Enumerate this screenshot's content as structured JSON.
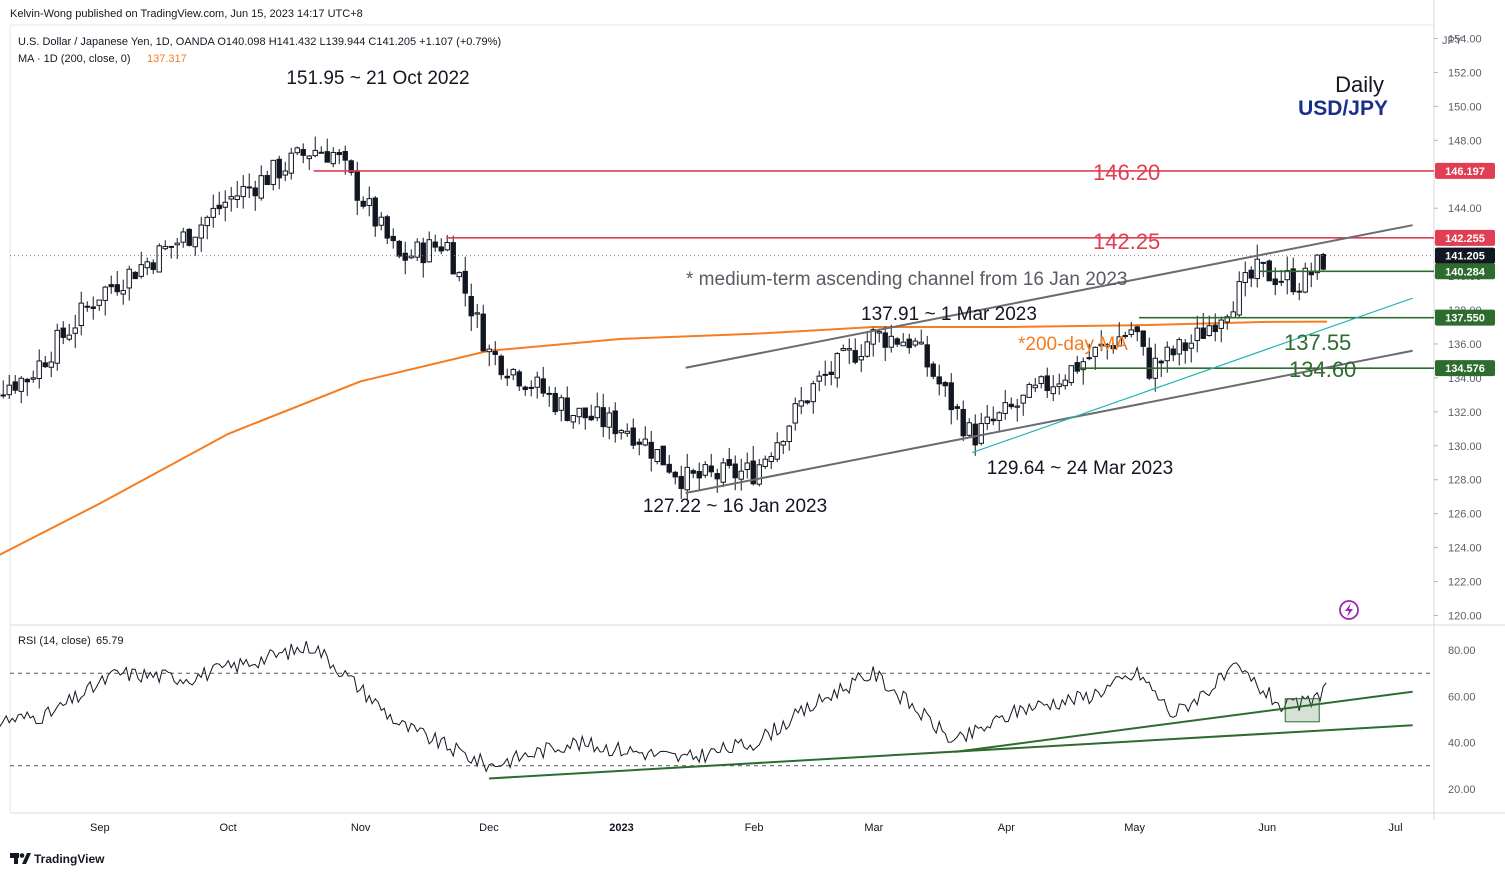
{
  "header": {
    "publisher": "Kelvin-Wong published on TradingView.com, Jun 15, 2023 14:17 UTC+8",
    "symbol_line": "U.S. Dollar / Japanese Yen, 1D, OANDA  O140.098  H141.432  L139.944  C141.205  +1.107 (+0.79%)",
    "ma_label": "MA · 1D (200, close, 0)",
    "ma_value": "137.317",
    "rsi_label": "RSI (14, close)",
    "rsi_value": "65.79"
  },
  "branding": {
    "logo_text": "TradingView"
  },
  "title": {
    "line1": "Daily",
    "line2": "USD/JPY"
  },
  "colors": {
    "resistance": "#e03e52",
    "support": "#2e6b2e",
    "ma": "#f57c1f",
    "channel": "#6b6b70",
    "trend_inner": "#22b5b8",
    "candle": "#131722",
    "title_blue": "#1a2f8a",
    "dark_label": "#131722"
  },
  "annotations": {
    "high_label": "151.95 ~ 21 Oct 2022",
    "low_jan_label": "127.22 ~ 16 Jan 2023",
    "mar_high_label": "137.91 ~ 1 Mar 2023",
    "mar_low_label": "129.64 ~ 24 Mar 2023",
    "channel_note": "* medium-term ascending channel from 16 Jan 2023",
    "ma_note": "*200-day MA",
    "res1": "146.20",
    "res2": "142.25",
    "sup1": "137.55",
    "sup2": "134.60"
  },
  "chart_data": {
    "type": "candlestick",
    "title": "USD/JPY",
    "timeframe": "Daily",
    "price_axis": {
      "unit": "JPY",
      "ylim": [
        119.5,
        154.5
      ],
      "ticks": [
        "120.00",
        "122.00",
        "124.00",
        "126.00",
        "128.00",
        "130.00",
        "132.00",
        "134.00",
        "136.00",
        "138.00",
        "140.00",
        "142.00",
        "144.00",
        "146.00",
        "148.00",
        "150.00",
        "152.00",
        "154.00"
      ]
    },
    "time_axis": {
      "ticks": [
        "Sep",
        "Oct",
        "Nov",
        "Dec",
        "2023",
        "Feb",
        "Mar",
        "Apr",
        "May",
        "Jun",
        "Jul"
      ]
    },
    "price_tags": [
      {
        "value": 146.197,
        "label": "146.197",
        "color": "#e03e52"
      },
      {
        "value": 142.255,
        "label": "142.255",
        "color": "#e03e52"
      },
      {
        "value": 141.205,
        "label": "141.205",
        "color": "#131722"
      },
      {
        "value": 140.284,
        "label": "140.284",
        "color": "#2e6b2e"
      },
      {
        "value": 137.55,
        "label": "137.550",
        "color": "#2e6b2e"
      },
      {
        "value": 134.576,
        "label": "134.576",
        "color": "#2e6b2e"
      }
    ],
    "horizontal_levels": [
      {
        "value": 146.197,
        "from": "2022-10-21",
        "kind": "resistance"
      },
      {
        "value": 142.255,
        "from": "2022-11-21",
        "kind": "resistance"
      },
      {
        "value": 140.284,
        "from": "2023-05-30",
        "kind": "support"
      },
      {
        "value": 137.55,
        "from": "2023-05-02",
        "kind": "support"
      },
      {
        "value": 134.576,
        "from": "2023-04-18",
        "kind": "support"
      }
    ],
    "key_points": [
      {
        "date": "2022-10-21",
        "value": 151.95
      },
      {
        "date": "2023-01-16",
        "value": 127.22
      },
      {
        "date": "2023-03-01",
        "value": 137.91
      },
      {
        "date": "2023-03-24",
        "value": 129.64
      }
    ],
    "channel_lines": [
      {
        "name": "upper",
        "points": [
          [
            "2023-01-16",
            134.6
          ],
          [
            "2023-07-05",
            143.0
          ]
        ]
      },
      {
        "name": "lower",
        "points": [
          [
            "2023-01-16",
            127.22
          ],
          [
            "2023-07-05",
            135.6
          ]
        ]
      },
      {
        "name": "inner",
        "points": [
          [
            "2023-03-24",
            129.6
          ],
          [
            "2023-07-05",
            138.7
          ]
        ]
      }
    ],
    "ma_series": {
      "x": [
        "2022-08-01",
        "2022-09-01",
        "2022-10-01",
        "2022-11-01",
        "2022-12-01",
        "2023-01-01",
        "2023-02-01",
        "2023-03-01",
        "2023-04-01",
        "2023-05-01",
        "2023-06-01",
        "2023-06-15"
      ],
      "y": [
        122.6,
        126.6,
        130.7,
        133.8,
        135.6,
        136.3,
        136.6,
        137.0,
        137.0,
        137.1,
        137.3,
        137.317
      ]
    },
    "close_series": {
      "x": [
        "2022-08-01",
        "2022-08-15",
        "2022-09-01",
        "2022-09-22",
        "2022-10-01",
        "2022-10-21",
        "2022-10-26",
        "2022-11-10",
        "2022-11-21",
        "2022-12-01",
        "2022-12-20",
        "2023-01-03",
        "2023-01-16",
        "2023-02-01",
        "2023-02-15",
        "2023-03-01",
        "2023-03-10",
        "2023-03-24",
        "2023-04-10",
        "2023-05-01",
        "2023-05-04",
        "2023-05-15",
        "2023-05-30",
        "2023-06-09",
        "2023-06-15"
      ],
      "y": [
        133.0,
        134.0,
        139.0,
        142.5,
        144.5,
        147.5,
        147.2,
        141.0,
        142.0,
        135.5,
        132.0,
        131.0,
        128.0,
        128.5,
        133.5,
        136.5,
        136.2,
        130.5,
        133.5,
        137.0,
        134.5,
        136.2,
        140.3,
        139.6,
        141.2
      ]
    },
    "rsi": {
      "ylim": [
        10,
        90
      ],
      "ticks": [
        "20.00",
        "40.00",
        "60.00",
        "80.00"
      ],
      "levels": [
        70,
        30
      ],
      "x": [
        "2022-08-01",
        "2022-08-20",
        "2022-09-05",
        "2022-09-22",
        "2022-10-21",
        "2022-11-10",
        "2022-12-01",
        "2022-12-20",
        "2023-01-05",
        "2023-01-16",
        "2023-02-01",
        "2023-02-20",
        "2023-03-01",
        "2023-03-20",
        "2023-04-05",
        "2023-04-20",
        "2023-05-02",
        "2023-05-10",
        "2023-05-25",
        "2023-06-05",
        "2023-06-12",
        "2023-06-15"
      ],
      "y": [
        48,
        52,
        70,
        68,
        82,
        48,
        30,
        40,
        36,
        33,
        40,
        62,
        70,
        40,
        55,
        60,
        70,
        52,
        72,
        55,
        58,
        65.79
      ],
      "trendlines": [
        {
          "points": [
            [
              "2022-12-01",
              24.5
            ],
            [
              "2023-07-05",
              47.5
            ]
          ]
        },
        {
          "points": [
            [
              "2023-03-20",
              36.0
            ],
            [
              "2023-07-05",
              62.0
            ]
          ]
        }
      ]
    }
  }
}
